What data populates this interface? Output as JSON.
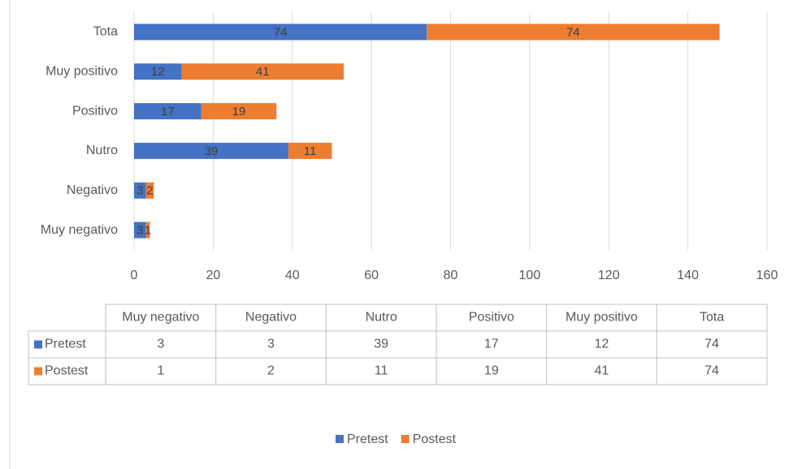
{
  "chart_data": {
    "type": "bar",
    "orientation": "horizontal",
    "stacked": true,
    "categories": [
      "Muy negativo",
      "Negativo",
      "Nutro",
      "Positivo",
      "Muy positivo",
      "Tota"
    ],
    "series": [
      {
        "name": "Pretest",
        "color": "#4472c4",
        "values": [
          3,
          3,
          39,
          17,
          12,
          74
        ]
      },
      {
        "name": "Postest",
        "color": "#ed7d31",
        "values": [
          1,
          2,
          11,
          19,
          41,
          74
        ]
      }
    ],
    "xlim": [
      0,
      160
    ],
    "xticks": [
      0,
      20,
      40,
      60,
      80,
      100,
      120,
      140,
      160
    ],
    "grid": true,
    "legend": "bottom",
    "data_table": true
  }
}
